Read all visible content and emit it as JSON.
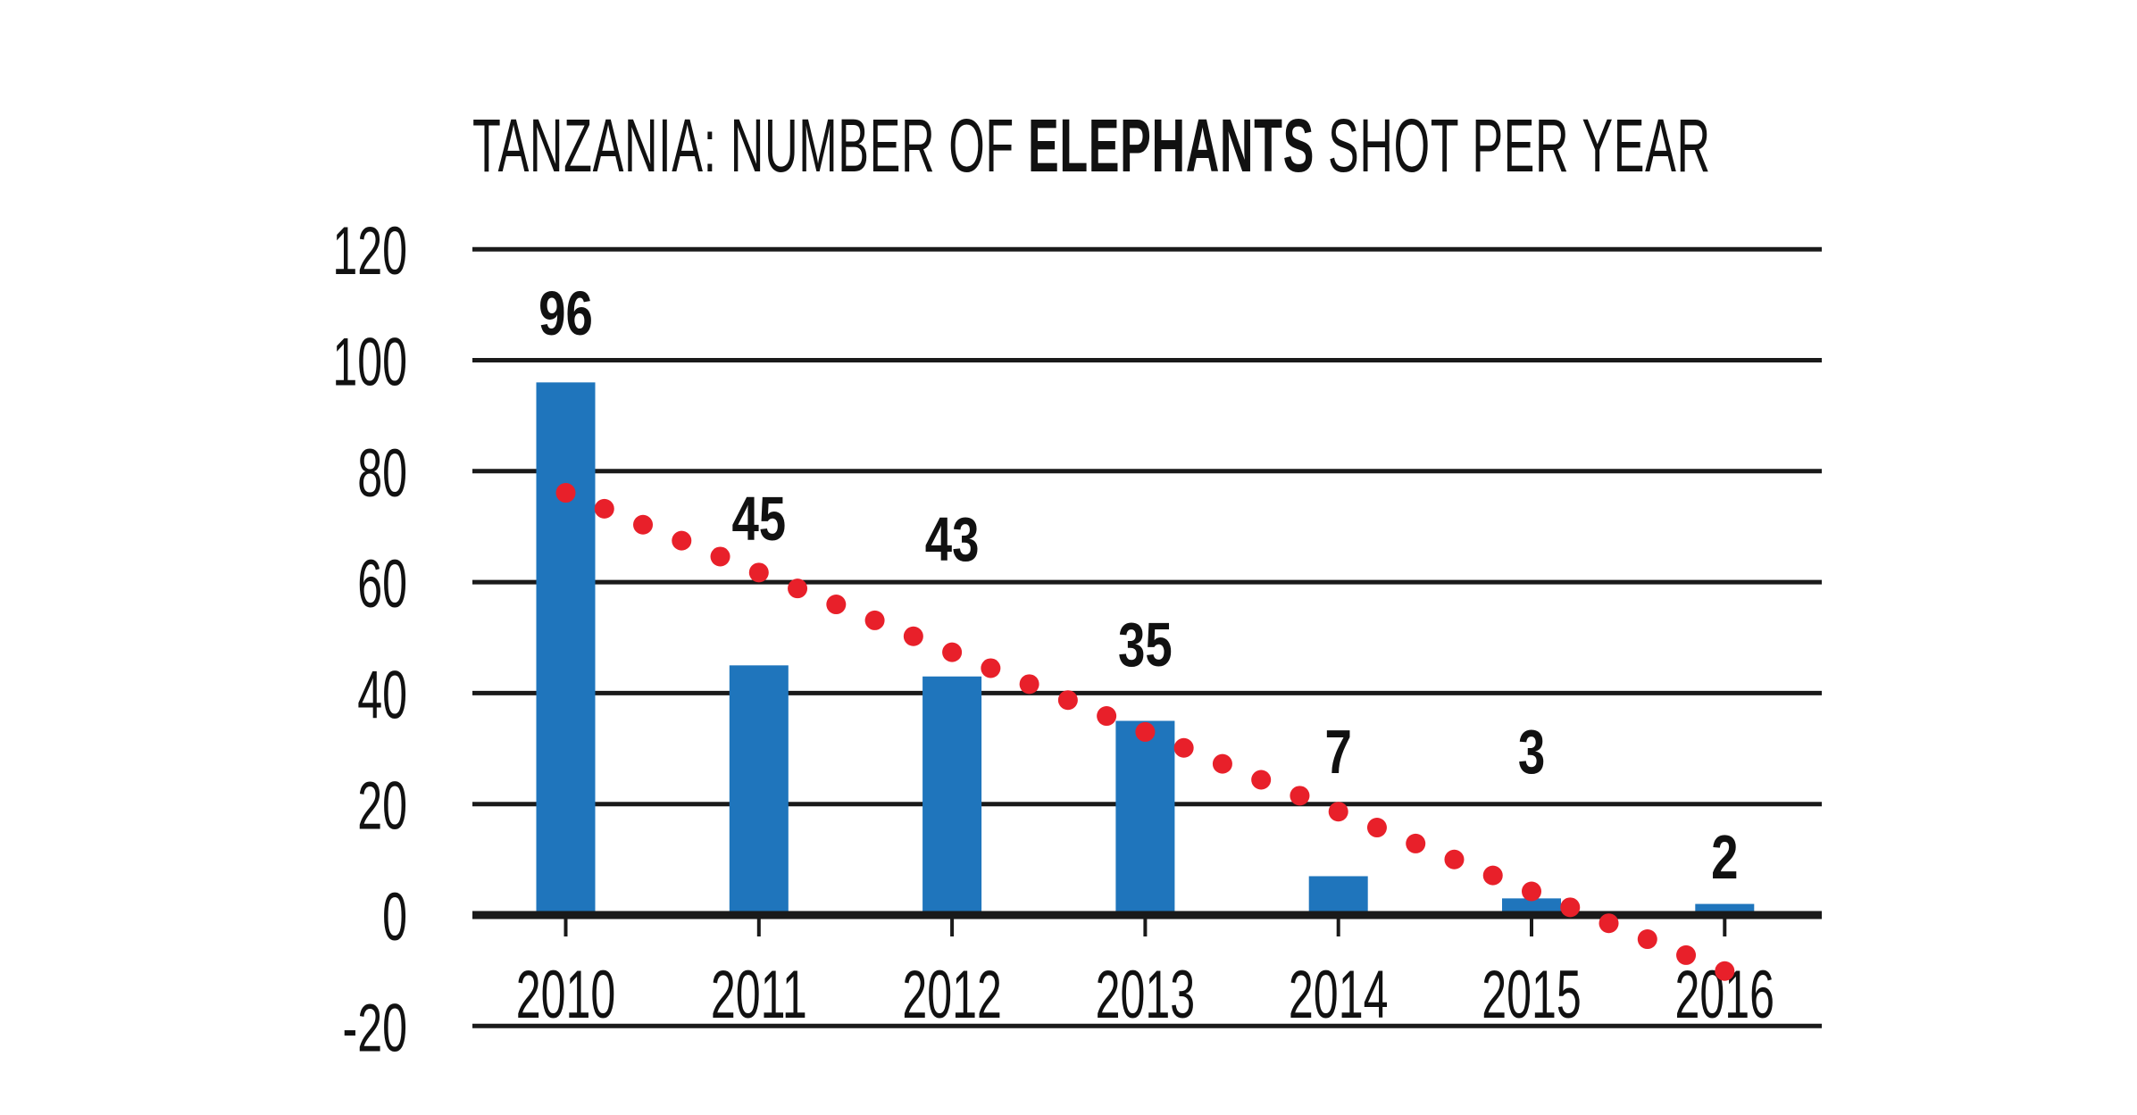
{
  "chart_data": {
    "type": "bar",
    "title_parts": [
      "TANZANIA: NUMBER OF ",
      "ELEPHANTS",
      " SHOT PER YEAR"
    ],
    "categories": [
      "2010",
      "2011",
      "2012",
      "2013",
      "2014",
      "2015",
      "2016"
    ],
    "values": [
      96,
      45,
      43,
      35,
      7,
      3,
      2
    ],
    "data_labels": [
      "96",
      "45",
      "43",
      "35",
      "7",
      "3",
      "2"
    ],
    "ylim": [
      -20,
      120
    ],
    "yticks": [
      120,
      100,
      80,
      60,
      40,
      20,
      0,
      -20
    ],
    "ytick_labels": [
      "120",
      "100",
      "80",
      "60",
      "40",
      "20",
      "0",
      "-20"
    ],
    "grid": true,
    "trendline": {
      "type": "linear",
      "style": "dotted",
      "start": 76.1,
      "end": -10.1
    },
    "colors": {
      "bar": "#1f75bc",
      "trend": "#e8202a",
      "grid": "#1a1a1a"
    }
  }
}
